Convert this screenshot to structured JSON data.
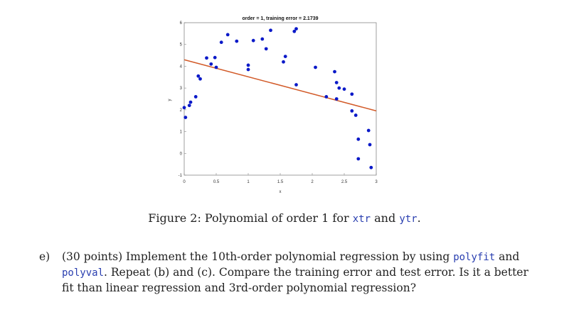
{
  "chart_data": {
    "type": "scatter",
    "title": "order = 1, training error = 2.1739",
    "xlabel": "x",
    "ylabel": "y",
    "xlim": [
      0,
      3
    ],
    "ylim": [
      -1,
      6
    ],
    "xticks": [
      "0",
      "0.5",
      "1",
      "1.5",
      "2",
      "2.5",
      "3"
    ],
    "yticks": [
      "-1",
      "0",
      "1",
      "2",
      "3",
      "4",
      "5",
      "6"
    ],
    "points": [
      [
        0.0,
        2.1
      ],
      [
        0.02,
        1.65
      ],
      [
        0.08,
        2.2
      ],
      [
        0.1,
        2.35
      ],
      [
        0.18,
        2.6
      ],
      [
        0.22,
        3.55
      ],
      [
        0.25,
        3.42
      ],
      [
        0.35,
        4.38
      ],
      [
        0.42,
        4.1
      ],
      [
        0.48,
        4.4
      ],
      [
        0.5,
        3.95
      ],
      [
        0.58,
        5.1
      ],
      [
        0.68,
        5.45
      ],
      [
        0.82,
        5.15
      ],
      [
        1.0,
        4.05
      ],
      [
        1.0,
        3.85
      ],
      [
        1.08,
        5.18
      ],
      [
        1.22,
        5.25
      ],
      [
        1.28,
        4.8
      ],
      [
        1.35,
        5.65
      ],
      [
        1.55,
        4.2
      ],
      [
        1.58,
        4.45
      ],
      [
        1.72,
        5.6
      ],
      [
        1.75,
        5.72
      ],
      [
        1.75,
        3.15
      ],
      [
        2.05,
        3.95
      ],
      [
        2.22,
        2.6
      ],
      [
        2.35,
        3.75
      ],
      [
        2.38,
        3.25
      ],
      [
        2.38,
        2.5
      ],
      [
        2.42,
        3.0
      ],
      [
        2.5,
        2.95
      ],
      [
        2.62,
        2.72
      ],
      [
        2.62,
        1.95
      ],
      [
        2.68,
        1.75
      ],
      [
        2.72,
        0.65
      ],
      [
        2.72,
        -0.25
      ],
      [
        2.88,
        1.05
      ],
      [
        2.9,
        0.4
      ],
      [
        2.92,
        -0.65
      ]
    ],
    "fit_line": {
      "x": [
        0.0,
        3.0
      ],
      "y": [
        4.3,
        1.95
      ]
    },
    "point_color": "#0a19c8",
    "line_color": "#d25a28"
  },
  "caption": {
    "prefix": "Figure 2: Polynomial of order 1 for",
    "code1": "xtr",
    "mid": "and",
    "code2": "ytr",
    "suffix": "."
  },
  "problem": {
    "label": "e)",
    "text1": "(30 points) Implement the 10th-order polynomial regression by using",
    "code1": "polyfit",
    "text2": "and",
    "code2": "polyval",
    "text3": ". Repeat (b) and (c). Compare the training error and test error. Is it a better fit than linear regression and 3rd-order polynomial regression?"
  }
}
